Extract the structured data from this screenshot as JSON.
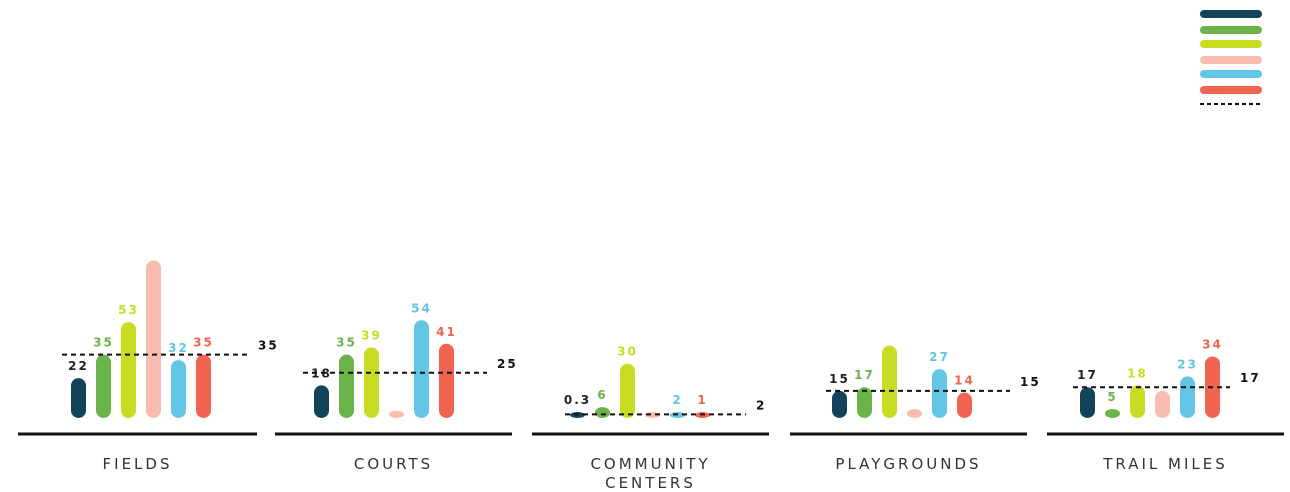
{
  "chart_data": {
    "type": "bar",
    "categories": [
      "FIELDS",
      "COURTS",
      "COMMUNITY CENTERS",
      "PLAYGROUNDS",
      "TRAIL MILES"
    ],
    "series": [
      {
        "color": "#12435a",
        "values": [
          22,
          18,
          0.3,
          15,
          17
        ],
        "labels": [
          "22",
          "18",
          "0.3",
          "15",
          "17"
        ]
      },
      {
        "color": "#6cb34a",
        "values": [
          35,
          35,
          6,
          17,
          5
        ],
        "labels": [
          "35",
          "35",
          "6",
          "17",
          "5"
        ]
      },
      {
        "color": "#c8dc22",
        "values": [
          53,
          39,
          30,
          40,
          18
        ],
        "labels": [
          "53",
          "39",
          "30",
          "",
          "18"
        ]
      },
      {
        "color": "#f8bdb0",
        "values": [
          87,
          4,
          1,
          5,
          15
        ],
        "labels": [
          "",
          "",
          "",
          "",
          ""
        ]
      },
      {
        "color": "#63c6e6",
        "values": [
          32,
          54,
          2,
          27,
          23
        ],
        "labels": [
          "32",
          "54",
          "2",
          "27",
          "23"
        ]
      },
      {
        "color": "#f06450",
        "values": [
          35,
          41,
          1,
          14,
          34
        ],
        "labels": [
          "35",
          "41",
          "1",
          "14",
          "34"
        ]
      }
    ],
    "reference_lines": [
      {
        "style": "dashed",
        "color": "#111111",
        "values": [
          35,
          25,
          2,
          15,
          17
        ],
        "labels": [
          "35",
          "25",
          "2",
          "15",
          "17"
        ]
      }
    ],
    "legend_placement": "top-right",
    "grid": false,
    "ylim": [
      0,
      90
    ]
  }
}
